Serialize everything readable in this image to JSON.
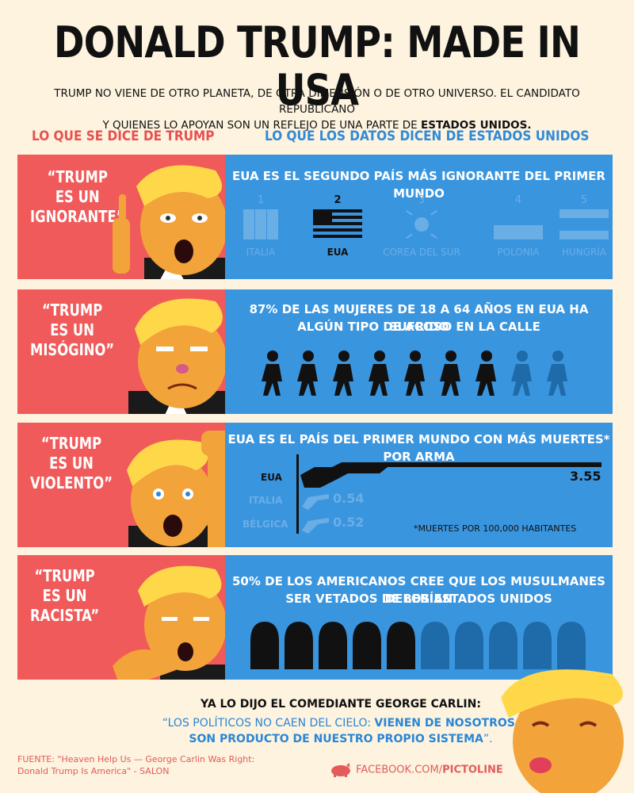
{
  "header": {
    "title": "DONALD TRUMP: MADE IN USA",
    "subtitle_line1": "TRUMP NO VIENE DE OTRO PLANETA, DE OTRA DIMENSIÓN O DE OTRO UNIVERSO. EL CANDIDATO REPUBLICANO",
    "subtitle_line2_start": "Y QUIENES LO APOYAN SON UN REFLEJO DE UNA PARTE DE ",
    "subtitle_line2_bold": "ESTADOS UNIDOS."
  },
  "columns": {
    "left": "LO QUE SE DICE DE TRUMP",
    "right": "LO QUE LOS DATOS DICEN DE ESTADOS UNIDOS"
  },
  "colors": {
    "red": "#f15a5a",
    "blue": "#3a95df",
    "cream": "#fdf3df",
    "dark": "#111111"
  },
  "rows": [
    {
      "quote": "“TRUMP\nES UN\nIGNORANTE”",
      "fact": "EUA ES EL SEGUNDO PAÍS MÁS IGNORANTE DEL PRIMER MUNDO",
      "ranking": [
        {
          "rank": "1",
          "country": "ITALIA",
          "flag": "italy-flag-icon"
        },
        {
          "rank": "2",
          "country": "EUA",
          "flag": "usa-flag-icon"
        },
        {
          "rank": "3",
          "country": "COREA DEL SUR",
          "flag": "south-korea-flag-icon"
        },
        {
          "rank": "4",
          "country": "POLONIA",
          "flag": "poland-flag-icon"
        },
        {
          "rank": "5",
          "country": "HUNGRÍA",
          "flag": "hungary-flag-icon"
        }
      ]
    },
    {
      "quote": "“TRUMP\nES UN\nMISÓGINO”",
      "fact_line1": "87% DE LAS MUJERES DE 18 A 64 AÑOS EN EUA HA SUFRIDO",
      "fact_line2": "ALGÚN TIPO DE ACOSO EN LA CALLE",
      "pictogram": {
        "icon": "walking-woman-icon",
        "total": 9,
        "highlighted_fraction": 0.87
      }
    },
    {
      "quote": "“TRUMP\nES UN\nVIOLENTO”",
      "fact": "EUA ES EL PAÍS DEL PRIMER MUNDO CON MÁS MUERTES* POR ARMA",
      "guns": [
        {
          "country": "EUA",
          "value": "3.55",
          "icon": "shotgun-icon"
        },
        {
          "country": "ITALIA",
          "value": "0.54",
          "icon": "revolver-icon"
        },
        {
          "country": "BÉLGICA",
          "value": "0.52",
          "icon": "revolver-icon"
        }
      ],
      "footnote": "*MUERTES POR 100,000 HABITANTES"
    },
    {
      "quote": "“TRUMP\nES UN\nRACISTA”",
      "fact_line1": "50% DE LOS AMERICANOS CREE QUE LOS MUSULMANES DEBERÍAN",
      "fact_line2": "SER VETADOS DE LOS ESTADOS UNIDOS",
      "pictogram": {
        "icon": "veiled-figure-icon",
        "total": 10,
        "highlighted_fraction": 0.5
      }
    }
  ],
  "footer": {
    "lead": "YA LO DIJO EL COMEDIANTE ",
    "lead_bold": "GEORGE CARLIN:",
    "quote_line1_start": "“LOS POLÍTICOS NO CAEN DEL CIELO: ",
    "quote_line1_bold": "VIENEN DE NOSOTROS.",
    "quote_line2": "SON PRODUCTO DE NUESTRO PROPIO SISTEMA",
    "quote_line2_end": "”.",
    "source_line1": "FUENTE: \"Heaven Help Us — George Carlin Was Right:",
    "source_line2": "Donald Trump Is America\" - SALON",
    "facebook_prefix": "FACEBOOK.COM/",
    "facebook_bold": "PICTOLINE"
  }
}
